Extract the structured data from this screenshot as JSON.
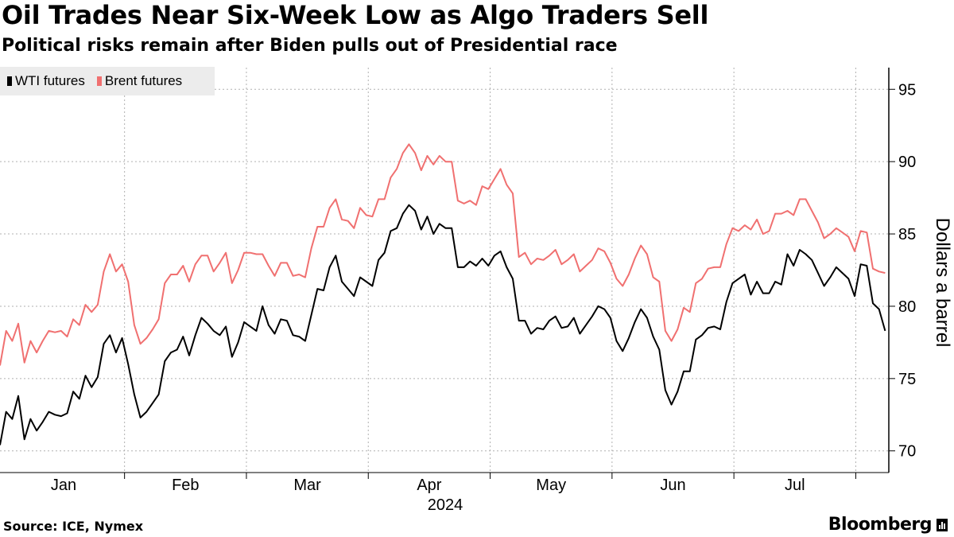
{
  "header": {
    "title": "Oil Trades Near Six-Week Low as Algo Traders Sell",
    "subtitle": "Political risks remain after Biden pulls out of Presidential race"
  },
  "footer": {
    "source": "Source: ICE, Nymex",
    "brand": "Bloomberg"
  },
  "colors": {
    "wti": "#000000",
    "brent": "#f07070",
    "grid": "#b0b0b0"
  },
  "chart_data": {
    "type": "line",
    "title": "Oil Trades Near Six-Week Low as Algo Traders Sell",
    "subtitle": "Political risks remain after Biden pulls out of Presidential race",
    "xlabel": "2024",
    "ylabel": "Dollars a barrel",
    "y_axis_side": "right",
    "ylim": [
      68.5,
      96.5
    ],
    "yticks": [
      70,
      75,
      80,
      85,
      90,
      95
    ],
    "xlim": [
      0,
      143
    ],
    "xticks": [
      {
        "label": "Jan",
        "pos": 12
      },
      {
        "label": "Feb",
        "pos": 36
      },
      {
        "label": "Mar",
        "pos": 59
      },
      {
        "label": "Apr",
        "pos": 84
      },
      {
        "label": "May",
        "pos": 109
      },
      {
        "label": "Jun",
        "pos": 133
      },
      {
        "label": "Jul",
        "pos": 157
      }
    ],
    "year_label": "2024",
    "grid": true,
    "legend_position": "top-left",
    "series": [
      {
        "name": "WTI futures",
        "color": "#000000",
        "values": [
          70.4,
          72.7,
          72.2,
          73.8,
          70.8,
          72.2,
          71.4,
          72.0,
          72.7,
          72.5,
          72.4,
          72.6,
          74.1,
          73.6,
          75.2,
          74.4,
          75.1,
          77.4,
          78.0,
          76.8,
          77.8,
          76.0,
          73.9,
          72.3,
          72.7,
          73.3,
          73.9,
          76.2,
          76.8,
          77.0,
          77.9,
          76.6,
          78.0,
          79.2,
          78.8,
          78.3,
          78.0,
          78.6,
          76.5,
          77.5,
          78.9,
          78.6,
          78.3,
          80.0,
          78.7,
          78.1,
          79.1,
          79.0,
          78.0,
          77.9,
          77.6,
          79.4,
          81.2,
          81.1,
          82.7,
          83.5,
          81.7,
          81.2,
          80.7,
          82.0,
          81.7,
          81.4,
          83.2,
          83.7,
          85.2,
          85.4,
          86.4,
          87.0,
          86.6,
          85.3,
          86.2,
          85.0,
          85.7,
          85.4,
          85.4,
          82.7,
          82.7,
          83.1,
          82.8,
          83.3,
          82.8,
          83.5,
          83.8,
          82.7,
          81.9,
          79.0,
          79.0,
          78.1,
          78.5,
          78.4,
          79.0,
          79.3,
          78.5,
          78.6,
          79.2,
          78.1,
          78.7,
          79.3,
          80.0,
          79.8,
          79.2,
          77.6,
          76.9,
          77.8,
          78.9,
          79.8,
          79.2,
          77.9,
          77.0,
          74.2,
          73.2,
          74.1,
          75.5,
          75.5,
          77.7,
          78.0,
          78.5,
          78.6,
          78.4,
          80.3,
          81.6,
          81.9,
          82.2,
          80.8,
          81.7,
          80.9,
          80.9,
          81.7,
          81.5,
          83.6,
          82.8,
          83.9,
          83.6,
          83.2,
          82.3,
          81.4,
          82.0,
          82.7,
          82.3,
          81.9,
          80.7,
          82.9,
          82.8,
          80.2,
          79.8,
          78.3
        ]
      },
      {
        "name": "Brent futures",
        "color": "#f07070",
        "values": [
          75.9,
          78.3,
          77.6,
          78.8,
          76.1,
          77.6,
          76.8,
          77.6,
          78.3,
          78.2,
          78.3,
          77.9,
          79.1,
          78.7,
          80.1,
          79.6,
          80.1,
          82.4,
          83.6,
          82.4,
          82.9,
          81.7,
          78.7,
          77.4,
          77.8,
          78.4,
          79.1,
          81.6,
          82.2,
          82.2,
          82.8,
          81.7,
          82.9,
          83.5,
          83.5,
          82.4,
          83.0,
          83.7,
          81.6,
          82.5,
          83.7,
          83.7,
          83.6,
          83.6,
          82.8,
          82.1,
          83.0,
          83.0,
          82.1,
          82.2,
          82.0,
          84.0,
          85.5,
          85.5,
          86.8,
          87.4,
          86.0,
          85.9,
          85.4,
          86.8,
          86.3,
          86.2,
          87.4,
          87.4,
          88.9,
          89.5,
          90.6,
          91.2,
          90.6,
          89.4,
          90.4,
          89.8,
          90.4,
          90.0,
          90.0,
          87.3,
          87.1,
          87.3,
          87.0,
          88.3,
          88.1,
          88.8,
          89.5,
          88.4,
          87.8,
          83.4,
          83.7,
          82.9,
          83.3,
          83.2,
          83.5,
          83.9,
          82.9,
          83.2,
          83.6,
          82.4,
          82.8,
          83.2,
          84.0,
          83.8,
          83.0,
          81.9,
          81.4,
          82.2,
          83.3,
          84.2,
          83.6,
          82.0,
          81.7,
          78.3,
          77.6,
          78.4,
          79.9,
          79.6,
          81.6,
          81.9,
          82.6,
          82.7,
          82.7,
          84.3,
          85.4,
          85.2,
          85.6,
          85.3,
          86.0,
          85.0,
          85.2,
          86.4,
          86.4,
          86.6,
          86.3,
          87.4,
          87.4,
          86.6,
          85.8,
          84.7,
          85.0,
          85.4,
          85.1,
          84.8,
          83.8,
          85.2,
          85.1,
          82.6,
          82.4,
          82.3
        ]
      }
    ]
  }
}
